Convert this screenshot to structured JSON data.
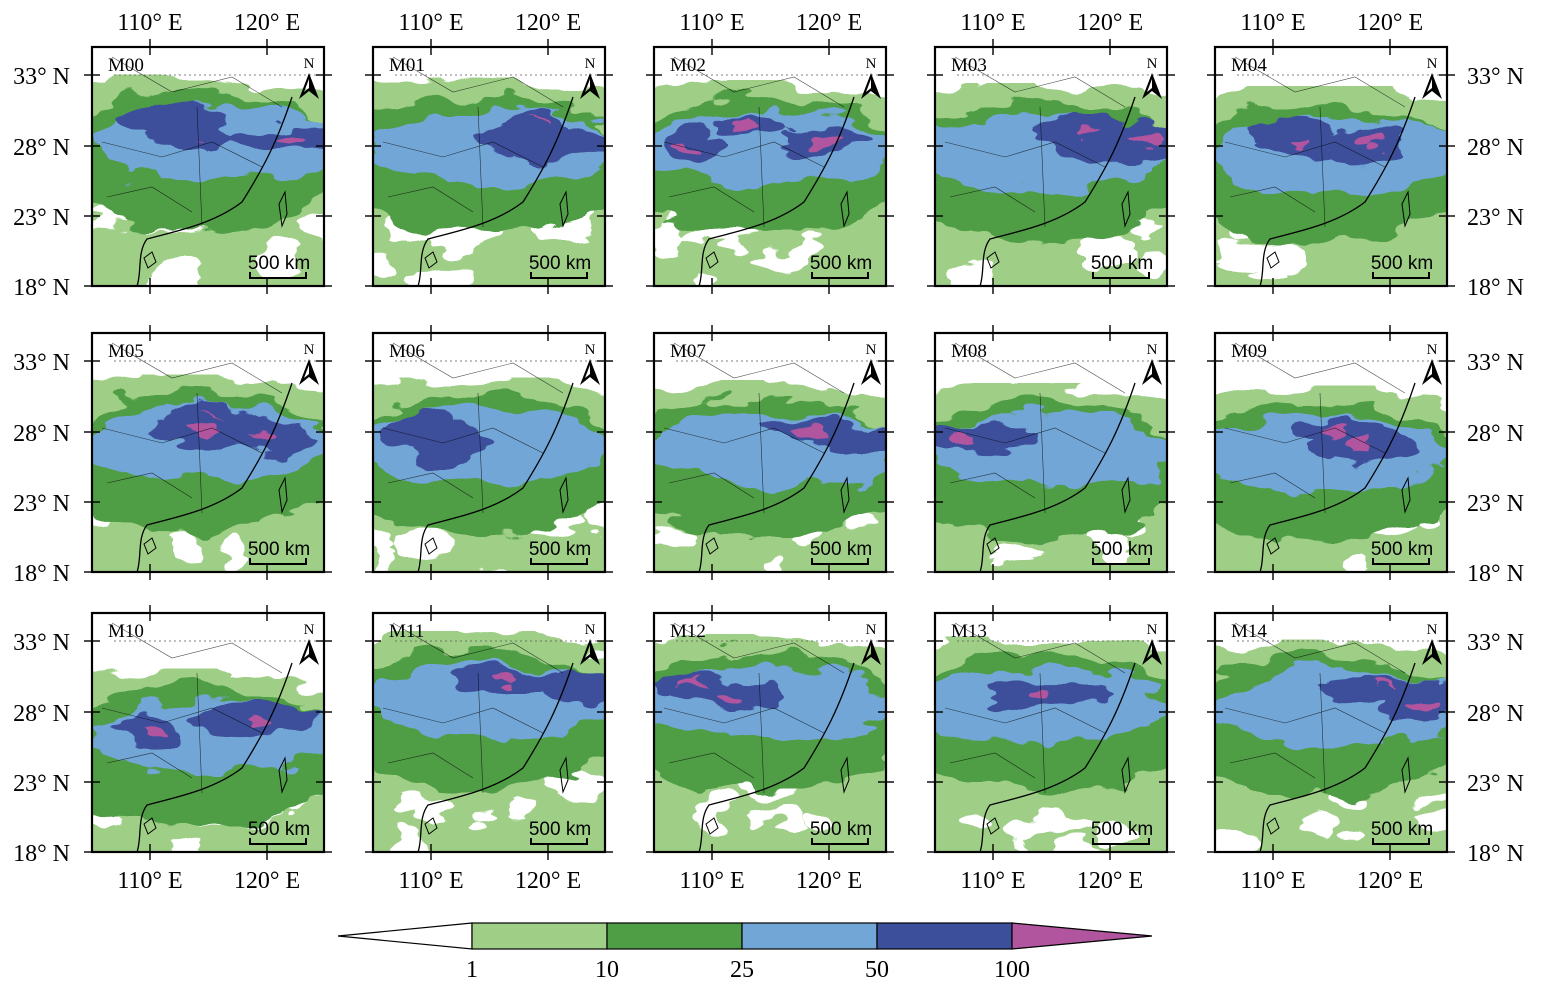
{
  "figure": {
    "panels": [
      {
        "label": "M00"
      },
      {
        "label": "M01"
      },
      {
        "label": "M02"
      },
      {
        "label": "M03"
      },
      {
        "label": "M04"
      },
      {
        "label": "M05"
      },
      {
        "label": "M06"
      },
      {
        "label": "M07"
      },
      {
        "label": "M08"
      },
      {
        "label": "M09"
      },
      {
        "label": "M10"
      },
      {
        "label": "M11"
      },
      {
        "label": "M12"
      },
      {
        "label": "M13"
      },
      {
        "label": "M14"
      }
    ],
    "grid": {
      "rows": 3,
      "cols": 5
    },
    "lon_ticks": [
      "110° E",
      "120° E"
    ],
    "lat_ticks": [
      "33° N",
      "28° N",
      "23° N",
      "18° N"
    ],
    "north_arrow": {
      "label": "N",
      "icon": "north-arrow-icon"
    },
    "scale_bar": {
      "label": "500 km"
    },
    "colorbar": {
      "ticks": [
        "1",
        "10",
        "25",
        "50",
        "100"
      ],
      "colors": [
        "#ffffff",
        "#9fcf87",
        "#4f9d45",
        "#72a6d6",
        "#3c4f9b",
        "#b0559e"
      ],
      "extend": "both"
    }
  }
}
